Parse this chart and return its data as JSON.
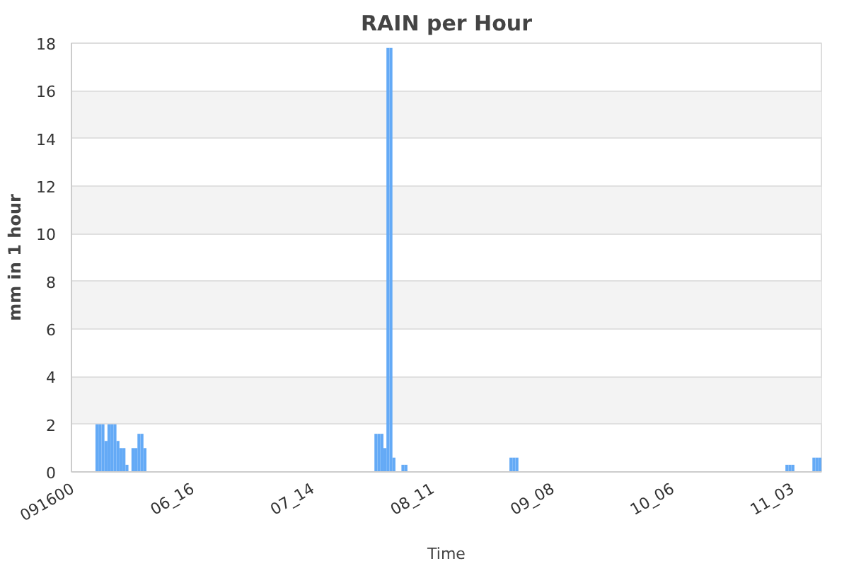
{
  "chart_data": {
    "type": "bar",
    "title": "RAIN per Hour",
    "xlabel": "Time",
    "ylabel": "mm in 1 hour",
    "categories": [
      "091600",
      null,
      null,
      null,
      null,
      null,
      null,
      null,
      null,
      null,
      null,
      null,
      null,
      null,
      null,
      null,
      null,
      null,
      null,
      null,
      null,
      null,
      null,
      null,
      null,
      null,
      null,
      null,
      null,
      null,
      null,
      null,
      null,
      null,
      null,
      null,
      null,
      null,
      null,
      null,
      "06_16",
      null,
      null,
      null,
      null,
      null,
      null,
      null,
      null,
      null,
      null,
      null,
      null,
      null,
      null,
      null,
      null,
      null,
      null,
      null,
      null,
      null,
      null,
      null,
      null,
      null,
      null,
      null,
      null,
      null,
      null,
      null,
      null,
      null,
      null,
      null,
      null,
      null,
      null,
      null,
      "07_14",
      null,
      null,
      null,
      null,
      null,
      null,
      null,
      null,
      null,
      null,
      null,
      null,
      null,
      null,
      null,
      null,
      null,
      null,
      null,
      null,
      null,
      null,
      null,
      null,
      null,
      null,
      null,
      null,
      null,
      null,
      null,
      null,
      null,
      null,
      null,
      null,
      null,
      null,
      null,
      "08_11",
      null,
      null,
      null,
      null,
      null,
      null,
      null,
      null,
      null,
      null,
      null,
      null,
      null,
      null,
      null,
      null,
      null,
      null,
      null,
      null,
      null,
      null,
      null,
      null,
      null,
      null,
      null,
      null,
      null,
      null,
      null,
      null,
      null,
      null,
      null,
      null,
      null,
      null,
      null,
      "09_08",
      null,
      null,
      null,
      null,
      null,
      null,
      null,
      null,
      null,
      null,
      null,
      null,
      null,
      null,
      null,
      null,
      null,
      null,
      null,
      null,
      null,
      null,
      null,
      null,
      null,
      null,
      null,
      null,
      null,
      null,
      null,
      null,
      null,
      null,
      null,
      null,
      null,
      null,
      null,
      "10_06",
      null,
      null,
      null,
      null,
      null,
      null,
      null,
      null,
      null,
      null,
      null,
      null,
      null,
      null,
      null,
      null,
      null,
      null,
      null,
      null,
      null,
      null,
      null,
      null,
      null,
      null,
      null,
      null,
      null,
      null,
      null,
      null,
      null,
      null,
      null,
      null,
      null,
      null,
      null,
      "11_03",
      null,
      null,
      null,
      null,
      null,
      null,
      null,
      null,
      null
    ],
    "values": [
      null,
      null,
      null,
      null,
      null,
      null,
      null,
      null,
      2.0,
      2.0,
      2.0,
      1.3,
      2.0,
      2.0,
      2.0,
      1.3,
      1.0,
      1.0,
      0.3,
      null,
      1.0,
      1.0,
      1.6,
      1.6,
      1.0,
      null,
      null,
      null,
      null,
      null,
      null,
      null,
      null,
      null,
      null,
      null,
      null,
      null,
      null,
      null,
      null,
      null,
      null,
      null,
      null,
      null,
      null,
      null,
      null,
      null,
      null,
      null,
      null,
      null,
      null,
      null,
      null,
      null,
      null,
      null,
      null,
      null,
      null,
      null,
      null,
      null,
      null,
      null,
      null,
      null,
      null,
      null,
      null,
      null,
      null,
      null,
      null,
      null,
      null,
      null,
      null,
      null,
      null,
      null,
      null,
      null,
      null,
      null,
      null,
      null,
      null,
      null,
      null,
      null,
      null,
      null,
      null,
      null,
      null,
      null,
      null,
      1.6,
      1.6,
      1.6,
      1.0,
      17.8,
      17.8,
      0.6,
      null,
      null,
      0.3,
      0.3,
      null,
      null,
      null,
      null,
      null,
      null,
      null,
      null,
      null,
      null,
      null,
      null,
      null,
      null,
      null,
      null,
      null,
      null,
      null,
      null,
      null,
      null,
      null,
      null,
      null,
      null,
      null,
      null,
      null,
      null,
      null,
      null,
      null,
      null,
      0.6,
      0.6,
      0.6,
      null,
      null,
      null,
      null,
      null,
      null,
      null,
      null,
      null,
      null,
      null,
      null,
      null,
      null,
      null,
      null,
      null,
      null,
      null,
      null,
      null,
      null,
      null,
      null,
      null,
      null,
      null,
      null,
      null,
      null,
      null,
      null,
      null,
      null,
      null,
      null,
      null,
      null,
      null,
      null,
      null,
      null,
      null,
      null,
      null,
      null,
      null,
      null,
      null,
      null,
      null,
      null,
      null,
      null,
      null,
      null,
      null,
      null,
      null,
      null,
      null,
      null,
      null,
      null,
      null,
      null,
      null,
      null,
      null,
      null,
      null,
      null,
      null,
      null,
      null,
      null,
      null,
      null,
      null,
      null,
      null,
      null,
      null,
      null,
      null,
      null,
      null,
      null,
      null,
      0.3,
      0.3,
      0.3,
      null,
      null,
      null,
      null,
      null,
      null,
      0.6,
      0.6,
      0.6
    ],
    "color": "#64aaf6",
    "ylim": [
      0,
      18
    ],
    "yticks": [
      0,
      2,
      4,
      6,
      8,
      10,
      12,
      14,
      16,
      18
    ],
    "grid": "y"
  }
}
